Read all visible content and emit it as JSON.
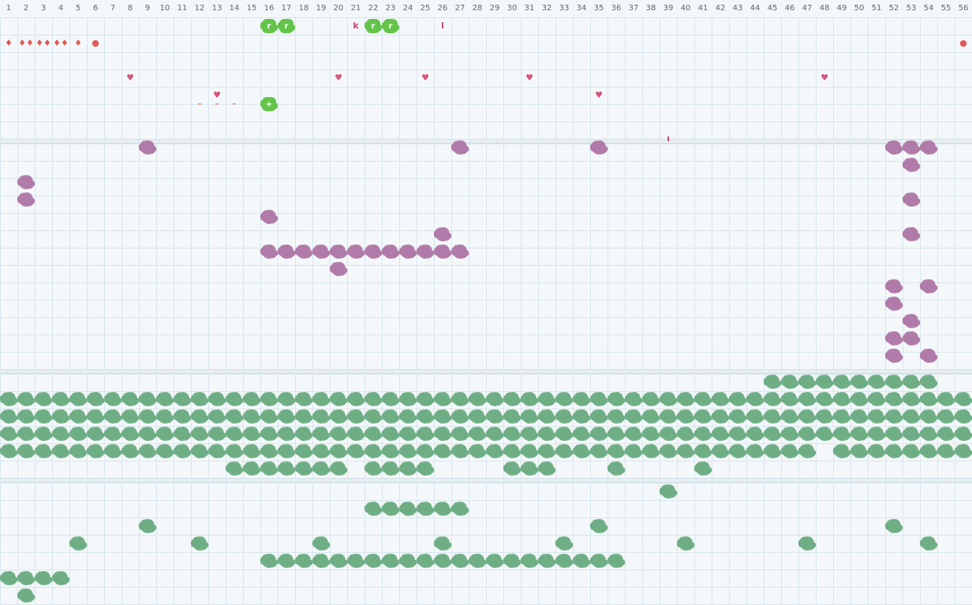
{
  "palette": {
    "purple": "#b07aa9",
    "teal": "#6fae85",
    "bright_green": "#64c44a",
    "red": "#e05a5a",
    "pink_heart": "#d6557a",
    "orange_dash": "#f08a55",
    "letter_pink": "#c2457a",
    "background": "#f4f8fa",
    "grid_line": "#d7e6ec"
  },
  "columns": [
    "1",
    "2",
    "3",
    "4",
    "5",
    "6",
    "7",
    "8",
    "9",
    "10",
    "11",
    "12",
    "13",
    "14",
    "15",
    "16",
    "17",
    "18",
    "19",
    "20",
    "21",
    "22",
    "23",
    "24",
    "25",
    "26",
    "27",
    "28",
    "29",
    "30",
    "31",
    "32",
    "33",
    "34",
    "35",
    "36",
    "37",
    "38",
    "39",
    "40",
    "41",
    "42",
    "43",
    "44",
    "45",
    "46",
    "47",
    "48",
    "49",
    "50",
    "51",
    "52",
    "53",
    "54",
    "55",
    "56"
  ],
  "markers": [
    {
      "kind": "token",
      "col": 16,
      "row": 1,
      "label": "r"
    },
    {
      "kind": "token",
      "col": 17,
      "row": 1,
      "label": "r"
    },
    {
      "kind": "letter",
      "col": 21,
      "row": 1,
      "label": "k"
    },
    {
      "kind": "token",
      "col": 22,
      "row": 1,
      "label": "r"
    },
    {
      "kind": "token",
      "col": 23,
      "row": 1,
      "label": "r"
    },
    {
      "kind": "letter",
      "col": 26,
      "row": 1,
      "label": "l"
    },
    {
      "kind": "drop",
      "col": 1,
      "row": 2,
      "label": "♦"
    },
    {
      "kind": "drop",
      "col": 2,
      "row": 2,
      "label": "♦♦"
    },
    {
      "kind": "drop",
      "col": 3,
      "row": 2,
      "label": "♦♦"
    },
    {
      "kind": "drop",
      "col": 4,
      "row": 2,
      "label": "♦♦"
    },
    {
      "kind": "drop",
      "col": 5,
      "row": 2,
      "label": "♦"
    },
    {
      "kind": "drop",
      "col": 6,
      "row": 2,
      "label": "●"
    },
    {
      "kind": "drop",
      "col": 56,
      "row": 2,
      "label": "●"
    },
    {
      "kind": "heart",
      "col": 8,
      "row": 4,
      "label": "♥"
    },
    {
      "kind": "heart",
      "col": 20,
      "row": 4,
      "label": "♥"
    },
    {
      "kind": "heart",
      "col": 25,
      "row": 4,
      "label": "♥"
    },
    {
      "kind": "heart",
      "col": 31,
      "row": 4,
      "label": "♥"
    },
    {
      "kind": "heart",
      "col": 48,
      "row": 4,
      "label": "♥"
    },
    {
      "kind": "heart",
      "col": 13,
      "row": 5,
      "label": "♥"
    },
    {
      "kind": "heart",
      "col": 35,
      "row": 5,
      "label": "♥"
    },
    {
      "kind": "dash",
      "col": 12,
      "row": 5.5,
      "label": "–"
    },
    {
      "kind": "dash",
      "col": 13,
      "row": 5.5,
      "label": "–"
    },
    {
      "kind": "dash",
      "col": 14,
      "row": 5.5,
      "label": "–"
    },
    {
      "kind": "token",
      "col": 16,
      "row": 5.5,
      "label": "+"
    },
    {
      "kind": "letter",
      "col": 39,
      "row": 7.5,
      "label": "ı"
    }
  ],
  "purple_cells": [
    [
      9,
      8
    ],
    [
      27,
      8
    ],
    [
      35,
      8
    ],
    [
      52,
      8
    ],
    [
      53,
      8
    ],
    [
      54,
      8
    ],
    [
      53,
      9
    ],
    [
      2,
      10
    ],
    [
      2,
      11
    ],
    [
      53,
      11
    ],
    [
      16,
      12
    ],
    [
      26,
      13
    ],
    [
      53,
      13
    ],
    [
      16,
      14
    ],
    [
      17,
      14
    ],
    [
      18,
      14
    ],
    [
      19,
      14
    ],
    [
      20,
      14
    ],
    [
      21,
      14
    ],
    [
      22,
      14
    ],
    [
      23,
      14
    ],
    [
      24,
      14
    ],
    [
      25,
      14
    ],
    [
      26,
      14
    ],
    [
      27,
      14
    ],
    [
      20,
      15
    ],
    [
      52,
      16
    ],
    [
      54,
      16
    ],
    [
      52,
      17
    ],
    [
      53,
      18
    ],
    [
      52,
      19
    ],
    [
      53,
      19
    ],
    [
      52,
      20
    ],
    [
      54,
      20
    ]
  ],
  "teal_rows": [
    {
      "row": 21.5,
      "cols": [
        45,
        46,
        47,
        48,
        49,
        50,
        51,
        52,
        53,
        54
      ]
    },
    {
      "row": 22.5,
      "range": [
        1,
        56
      ]
    },
    {
      "row": 23.5,
      "range": [
        1,
        56
      ]
    },
    {
      "row": 24.5,
      "range": [
        1,
        56
      ]
    },
    {
      "row": 25.5,
      "range": [
        1,
        47
      ],
      "extra": [
        49,
        50,
        51,
        52,
        53,
        54,
        55,
        56
      ]
    },
    {
      "row": 26.5,
      "cols": [
        14,
        15,
        16,
        17,
        18,
        19,
        20,
        22,
        23,
        24,
        25,
        30,
        31,
        32,
        36,
        41
      ]
    },
    {
      "row": 27.8,
      "cols": [
        39
      ]
    },
    {
      "row": 28.8,
      "cols": [
        22,
        23,
        24,
        25,
        26,
        27
      ]
    },
    {
      "row": 29.8,
      "cols": [
        9,
        35,
        52
      ]
    },
    {
      "row": 30.8,
      "cols": [
        5,
        12,
        19,
        26,
        33,
        40,
        47,
        54
      ]
    },
    {
      "row": 31.8,
      "range": [
        16,
        36
      ]
    },
    {
      "row": 32.8,
      "cols": [
        1,
        2,
        3,
        4
      ]
    },
    {
      "row": 33.8,
      "cols": [
        2
      ]
    }
  ]
}
